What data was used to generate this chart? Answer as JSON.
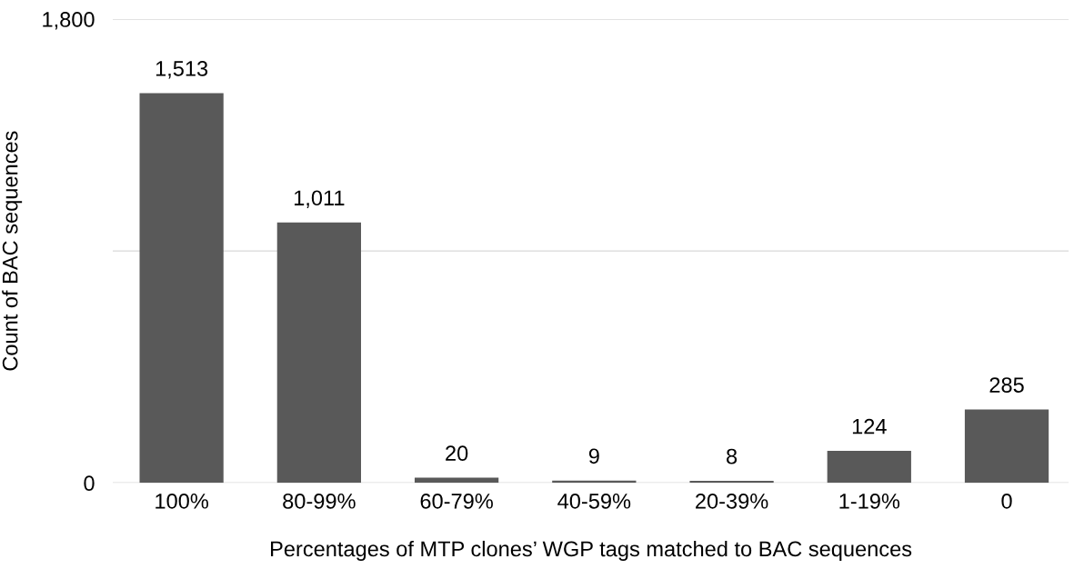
{
  "chart_data": {
    "type": "bar",
    "xlabel": "Percentages of MTP clones’ WGP tags matched to BAC sequences",
    "ylabel": "Count of BAC sequences",
    "categories": [
      "100%",
      "80-99%",
      "60-79%",
      "40-59%",
      "20-39%",
      "1-19%",
      "0"
    ],
    "values": [
      1513,
      1011,
      20,
      9,
      8,
      124,
      285
    ],
    "value_labels": [
      "1,513",
      "1,011",
      "20",
      "9",
      "8",
      "124",
      "285"
    ],
    "color": "#595959",
    "ylim": [
      0,
      1800
    ],
    "yticks": [
      0,
      {
        "value": 900,
        "label": null
      },
      {
        "value": 1800,
        "label": "1,800"
      }
    ],
    "grid": "y"
  }
}
